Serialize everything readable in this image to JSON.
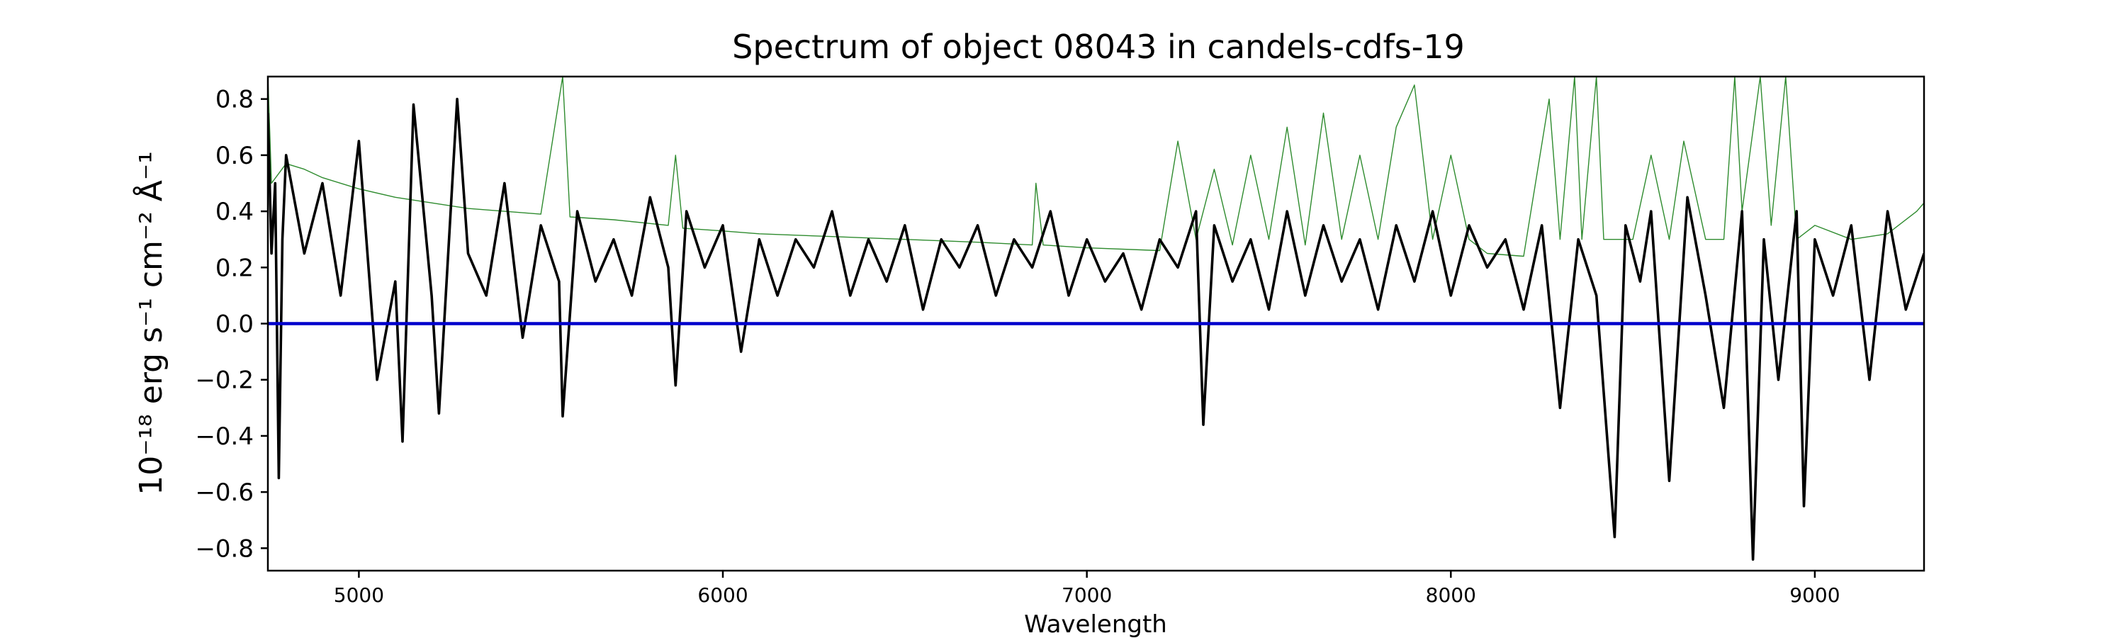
{
  "chart_data": {
    "type": "line",
    "title": "Spectrum of object 08043 in candels-cdfs-19",
    "xlabel": "Wavelength",
    "ylabel": "10⁻¹⁸ erg s⁻¹ cm⁻² Å⁻¹",
    "xlim": [
      4750,
      9300
    ],
    "ylim": [
      -0.88,
      0.88
    ],
    "x_ticks": [
      5000,
      6000,
      7000,
      8000,
      9000
    ],
    "y_ticks": [
      -0.8,
      -0.6,
      -0.4,
      -0.2,
      0.0,
      0.2,
      0.4,
      0.6,
      0.8
    ],
    "y_tick_labels": [
      "−0.8",
      "−0.6",
      "−0.4",
      "−0.2",
      "0.0",
      "0.2",
      "0.4",
      "0.6",
      "0.8"
    ],
    "grid": false,
    "series": [
      {
        "color": "#000000",
        "points": [
          [
            4750,
            0.75
          ],
          [
            4760,
            0.25
          ],
          [
            4770,
            0.5
          ],
          [
            4780,
            -0.55
          ],
          [
            4790,
            0.3
          ],
          [
            4800,
            0.6
          ],
          [
            4850,
            0.25
          ],
          [
            4900,
            0.5
          ],
          [
            4950,
            0.1
          ],
          [
            5000,
            0.65
          ],
          [
            5050,
            -0.2
          ],
          [
            5100,
            0.15
          ],
          [
            5120,
            -0.42
          ],
          [
            5150,
            0.78
          ],
          [
            5200,
            0.1
          ],
          [
            5220,
            -0.32
          ],
          [
            5270,
            0.8
          ],
          [
            5300,
            0.25
          ],
          [
            5350,
            0.1
          ],
          [
            5400,
            0.5
          ],
          [
            5450,
            -0.05
          ],
          [
            5500,
            0.35
          ],
          [
            5550,
            0.15
          ],
          [
            5560,
            -0.33
          ],
          [
            5600,
            0.4
          ],
          [
            5650,
            0.15
          ],
          [
            5700,
            0.3
          ],
          [
            5750,
            0.1
          ],
          [
            5800,
            0.45
          ],
          [
            5850,
            0.2
          ],
          [
            5870,
            -0.22
          ],
          [
            5900,
            0.4
          ],
          [
            5950,
            0.2
          ],
          [
            6000,
            0.35
          ],
          [
            6050,
            -0.1
          ],
          [
            6100,
            0.3
          ],
          [
            6150,
            0.1
          ],
          [
            6200,
            0.3
          ],
          [
            6250,
            0.2
          ],
          [
            6300,
            0.4
          ],
          [
            6350,
            0.1
          ],
          [
            6400,
            0.3
          ],
          [
            6450,
            0.15
          ],
          [
            6500,
            0.35
          ],
          [
            6550,
            0.05
          ],
          [
            6600,
            0.3
          ],
          [
            6650,
            0.2
          ],
          [
            6700,
            0.35
          ],
          [
            6750,
            0.1
          ],
          [
            6800,
            0.3
          ],
          [
            6850,
            0.2
          ],
          [
            6900,
            0.4
          ],
          [
            6950,
            0.1
          ],
          [
            7000,
            0.3
          ],
          [
            7050,
            0.15
          ],
          [
            7100,
            0.25
          ],
          [
            7150,
            0.05
          ],
          [
            7200,
            0.3
          ],
          [
            7250,
            0.2
          ],
          [
            7300,
            0.4
          ],
          [
            7320,
            -0.36
          ],
          [
            7350,
            0.35
          ],
          [
            7400,
            0.15
          ],
          [
            7450,
            0.3
          ],
          [
            7500,
            0.05
          ],
          [
            7550,
            0.4
          ],
          [
            7600,
            0.1
          ],
          [
            7650,
            0.35
          ],
          [
            7700,
            0.15
          ],
          [
            7750,
            0.3
          ],
          [
            7800,
            0.05
          ],
          [
            7850,
            0.35
          ],
          [
            7900,
            0.15
          ],
          [
            7950,
            0.4
          ],
          [
            8000,
            0.1
          ],
          [
            8050,
            0.35
          ],
          [
            8100,
            0.2
          ],
          [
            8150,
            0.3
          ],
          [
            8200,
            0.05
          ],
          [
            8250,
            0.35
          ],
          [
            8300,
            -0.3
          ],
          [
            8350,
            0.3
          ],
          [
            8400,
            0.1
          ],
          [
            8450,
            -0.76
          ],
          [
            8480,
            0.35
          ],
          [
            8520,
            0.15
          ],
          [
            8550,
            0.4
          ],
          [
            8600,
            -0.56
          ],
          [
            8650,
            0.45
          ],
          [
            8700,
            0.1
          ],
          [
            8750,
            -0.3
          ],
          [
            8800,
            0.4
          ],
          [
            8830,
            -0.84
          ],
          [
            8860,
            0.3
          ],
          [
            8900,
            -0.2
          ],
          [
            8950,
            0.4
          ],
          [
            8970,
            -0.65
          ],
          [
            9000,
            0.3
          ],
          [
            9050,
            0.1
          ],
          [
            9100,
            0.35
          ],
          [
            9150,
            -0.2
          ],
          [
            9200,
            0.4
          ],
          [
            9250,
            0.05
          ],
          [
            9300,
            0.25
          ]
        ]
      },
      {
        "color": "#2e8b2e",
        "points": [
          [
            4750,
            0.88
          ],
          [
            4760,
            0.5
          ],
          [
            4800,
            0.57
          ],
          [
            4850,
            0.55
          ],
          [
            4900,
            0.52
          ],
          [
            5000,
            0.48
          ],
          [
            5100,
            0.45
          ],
          [
            5200,
            0.43
          ],
          [
            5300,
            0.41
          ],
          [
            5400,
            0.4
          ],
          [
            5500,
            0.39
          ],
          [
            5560,
            0.88
          ],
          [
            5580,
            0.38
          ],
          [
            5700,
            0.37
          ],
          [
            5850,
            0.35
          ],
          [
            5870,
            0.6
          ],
          [
            5890,
            0.34
          ],
          [
            6000,
            0.33
          ],
          [
            6100,
            0.32
          ],
          [
            6300,
            0.31
          ],
          [
            6500,
            0.3
          ],
          [
            6700,
            0.29
          ],
          [
            6850,
            0.28
          ],
          [
            6860,
            0.5
          ],
          [
            6880,
            0.28
          ],
          [
            7000,
            0.27
          ],
          [
            7200,
            0.26
          ],
          [
            7250,
            0.65
          ],
          [
            7300,
            0.3
          ],
          [
            7350,
            0.55
          ],
          [
            7400,
            0.28
          ],
          [
            7450,
            0.6
          ],
          [
            7500,
            0.3
          ],
          [
            7550,
            0.7
          ],
          [
            7600,
            0.28
          ],
          [
            7650,
            0.75
          ],
          [
            7700,
            0.3
          ],
          [
            7750,
            0.6
          ],
          [
            7800,
            0.3
          ],
          [
            7850,
            0.7
          ],
          [
            7900,
            0.85
          ],
          [
            7950,
            0.3
          ],
          [
            8000,
            0.6
          ],
          [
            8050,
            0.3
          ],
          [
            8100,
            0.25
          ],
          [
            8200,
            0.24
          ],
          [
            8270,
            0.8
          ],
          [
            8300,
            0.3
          ],
          [
            8340,
            0.88
          ],
          [
            8360,
            0.3
          ],
          [
            8400,
            0.88
          ],
          [
            8420,
            0.3
          ],
          [
            8500,
            0.3
          ],
          [
            8550,
            0.6
          ],
          [
            8600,
            0.3
          ],
          [
            8640,
            0.65
          ],
          [
            8700,
            0.3
          ],
          [
            8750,
            0.3
          ],
          [
            8780,
            0.88
          ],
          [
            8800,
            0.4
          ],
          [
            8850,
            0.88
          ],
          [
            8880,
            0.35
          ],
          [
            8920,
            0.88
          ],
          [
            8950,
            0.3
          ],
          [
            9000,
            0.35
          ],
          [
            9100,
            0.3
          ],
          [
            9200,
            0.32
          ],
          [
            9280,
            0.4
          ],
          [
            9300,
            0.43
          ]
        ]
      },
      {
        "color": "#0000cc",
        "points": [
          [
            4750,
            0.0
          ],
          [
            9300,
            0.0
          ]
        ]
      }
    ]
  }
}
